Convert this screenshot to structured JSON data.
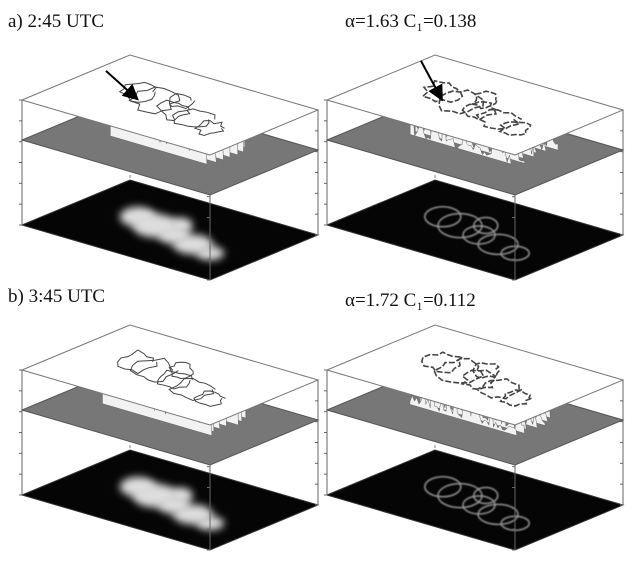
{
  "panels": [
    {
      "label": "a) 2:45 UTC",
      "parameters": "α=1.63 C₁=0.138"
    },
    {
      "label": "b) 3:45 UTC",
      "parameters": "α=1.72 C₁=0.112"
    }
  ]
}
